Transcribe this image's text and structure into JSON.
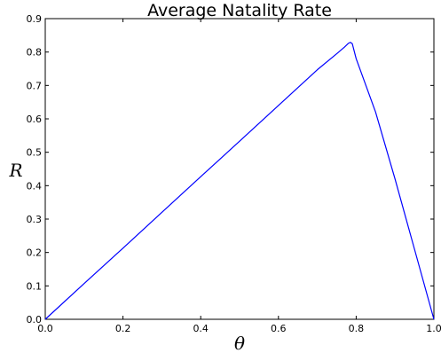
{
  "chart_data": {
    "type": "line",
    "title": "Average Natality Rate",
    "xlabel": "θ",
    "ylabel": "R",
    "xlim": [
      0.0,
      1.0
    ],
    "ylim": [
      0.0,
      0.9
    ],
    "xticks": [
      "0.0",
      "0.2",
      "0.4",
      "0.6",
      "0.8",
      "1.0"
    ],
    "yticks": [
      "0.0",
      "0.1",
      "0.2",
      "0.3",
      "0.4",
      "0.5",
      "0.6",
      "0.7",
      "0.8",
      "0.9"
    ],
    "grid": false,
    "legend": false,
    "series": [
      {
        "color": "#0000ff",
        "x": [
          0.0,
          0.1,
          0.2,
          0.3,
          0.4,
          0.5,
          0.6,
          0.7,
          0.75,
          0.77,
          0.78,
          0.785,
          0.79,
          0.8,
          0.85,
          0.9,
          0.95,
          1.0
        ],
        "y": [
          0.0,
          0.107,
          0.213,
          0.32,
          0.427,
          0.533,
          0.64,
          0.747,
          0.795,
          0.815,
          0.826,
          0.829,
          0.825,
          0.78,
          0.62,
          0.42,
          0.21,
          0.0
        ]
      }
    ]
  }
}
